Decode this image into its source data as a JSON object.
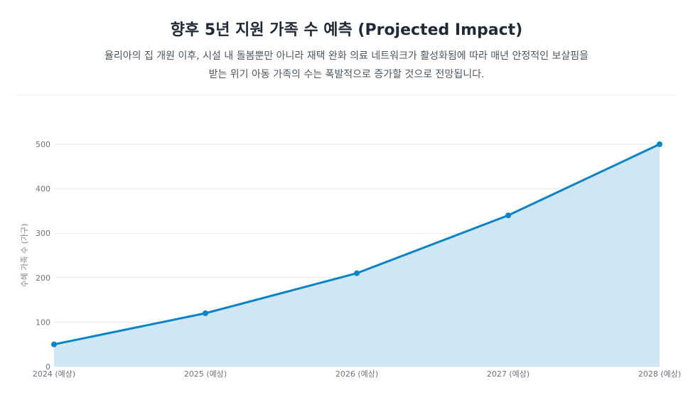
{
  "header": {
    "title": "향후 5년 지원 가족 수 예측 (Projected Impact)",
    "subtitle_line1": "율리아의 집 개원 이후, 시설 내 돌봄뿐만 아니라 재택 완화 의료 네트워크가 활성화됨에 따라 매년 안정적인 보살핌을",
    "subtitle_line2": "받는 위기 아동 가족의 수는 폭발적으로 증가할 것으로 전망됩니다."
  },
  "chart_data": {
    "type": "area",
    "categories": [
      "2024 (예상)",
      "2025 (예상)",
      "2026 (예상)",
      "2027 (예상)",
      "2028 (예상)"
    ],
    "series": [
      {
        "values": [
          50,
          120,
          210,
          340,
          500
        ]
      }
    ],
    "ylabel": "수혜 가족 수 (가구)",
    "xlabel": "",
    "ylim": [
      0,
      500
    ],
    "yticks": [
      0,
      100,
      200,
      300,
      400,
      500
    ],
    "grid": true,
    "legend": "none",
    "colors": {
      "line": "#0a84c6",
      "fill": "#cfe6f5",
      "grid": "#e5e7eb"
    }
  }
}
